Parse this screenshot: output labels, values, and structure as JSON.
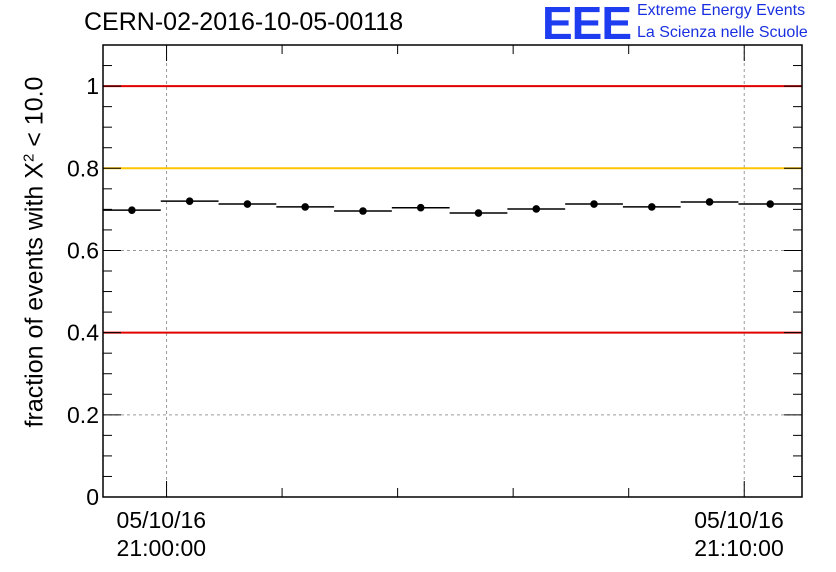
{
  "header": {
    "title": "CERN-02-2016-10-05-00118"
  },
  "logo": {
    "letters": "EEE",
    "line1": "Extreme Energy Events",
    "line2": "La Scienza nelle Scuole",
    "color": "#1f3df0"
  },
  "chart_data": {
    "type": "scatter",
    "title": "CERN-02-2016-10-05-00118",
    "ylabel_main": "fraction of events with X",
    "ylabel_sup": "2",
    "ylabel_tail": " < 10.0",
    "ylim": [
      0,
      1.1
    ],
    "yticks": [
      0,
      0.2,
      0.4,
      0.6,
      0.8,
      1
    ],
    "ytick_labels": [
      "0",
      "0.2",
      "0.4",
      "0.6",
      "0.8",
      "1"
    ],
    "xticks": [
      {
        "date": "05/10/16",
        "time": "21:00:00",
        "minutes": 0
      },
      {
        "date": "05/10/16",
        "time": "21:10:00",
        "minutes": 10
      }
    ],
    "xlim_minutes": [
      -1.1,
      11.0
    ],
    "grid": true,
    "reference_lines": [
      {
        "y": 1.0,
        "color": "#e00000"
      },
      {
        "y": 0.8,
        "color": "#ffc400"
      },
      {
        "y": 0.4,
        "color": "#e00000"
      }
    ],
    "bins": [
      {
        "x_start": -1.1,
        "x_end": -0.1,
        "y": 0.698
      },
      {
        "x_start": -0.1,
        "x_end": 0.9,
        "y": 0.72
      },
      {
        "x_start": 0.9,
        "x_end": 1.9,
        "y": 0.713
      },
      {
        "x_start": 1.9,
        "x_end": 2.9,
        "y": 0.706
      },
      {
        "x_start": 2.9,
        "x_end": 3.9,
        "y": 0.696
      },
      {
        "x_start": 3.9,
        "x_end": 4.9,
        "y": 0.704
      },
      {
        "x_start": 4.9,
        "x_end": 5.9,
        "y": 0.691
      },
      {
        "x_start": 5.9,
        "x_end": 6.9,
        "y": 0.701
      },
      {
        "x_start": 6.9,
        "x_end": 7.9,
        "y": 0.713
      },
      {
        "x_start": 7.9,
        "x_end": 8.9,
        "y": 0.706
      },
      {
        "x_start": 8.9,
        "x_end": 9.9,
        "y": 0.718
      },
      {
        "x_start": 9.9,
        "x_end": 11.0,
        "y": 0.713
      }
    ],
    "marker_color": "#000000"
  }
}
